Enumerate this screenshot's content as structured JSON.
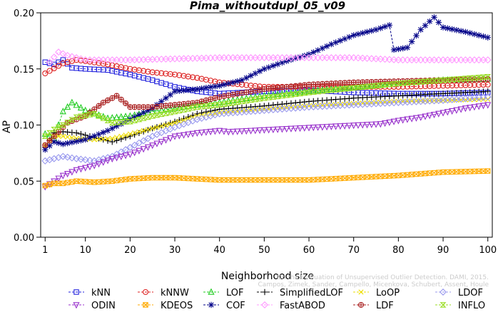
{
  "chart_data": {
    "type": "line",
    "title": "Pima_withoutdupl_05_v09",
    "xlabel": "Neighborhood size",
    "ylabel": "AP",
    "xlim": [
      0,
      101
    ],
    "ylim": [
      0,
      0.2
    ],
    "x_ticks": [
      1,
      10,
      20,
      30,
      40,
      50,
      60,
      70,
      80,
      90,
      100
    ],
    "y_ticks": [
      0.0,
      0.05,
      0.1,
      0.15,
      0.2
    ],
    "y_tick_labels": [
      "0.00",
      "0.05",
      "0.10",
      "0.15",
      "0.20"
    ],
    "grid": false,
    "legend_position": "bottom",
    "watermark": "Campos, Zimek, Sander, Campello, Micenkova, Schubert, Assent, Houle",
    "watermark_title": "On the Evaluation of Unsupervised Outlier Detection. DAMI, 2015.",
    "series": [
      {
        "name": "kNN",
        "color": "#2222dd",
        "marker": "square",
        "points": [
          [
            1,
            0.156
          ],
          [
            3,
            0.154
          ],
          [
            5,
            0.158
          ],
          [
            7,
            0.151
          ],
          [
            10,
            0.15
          ],
          [
            15,
            0.149
          ],
          [
            20,
            0.145
          ],
          [
            25,
            0.14
          ],
          [
            30,
            0.134
          ],
          [
            35,
            0.13
          ],
          [
            40,
            0.128
          ],
          [
            50,
            0.13
          ],
          [
            60,
            0.131
          ],
          [
            70,
            0.129
          ],
          [
            80,
            0.128
          ],
          [
            90,
            0.128
          ],
          [
            100,
            0.129
          ]
        ]
      },
      {
        "name": "kNNW",
        "color": "#dd2222",
        "marker": "circle",
        "points": [
          [
            1,
            0.146
          ],
          [
            5,
            0.155
          ],
          [
            8,
            0.158
          ],
          [
            10,
            0.157
          ],
          [
            15,
            0.154
          ],
          [
            20,
            0.15
          ],
          [
            25,
            0.147
          ],
          [
            30,
            0.145
          ],
          [
            35,
            0.142
          ],
          [
            40,
            0.138
          ],
          [
            50,
            0.134
          ],
          [
            60,
            0.134
          ],
          [
            70,
            0.134
          ],
          [
            80,
            0.134
          ],
          [
            90,
            0.135
          ],
          [
            100,
            0.136
          ]
        ]
      },
      {
        "name": "LOF",
        "color": "#22cc22",
        "marker": "triangle",
        "points": [
          [
            1,
            0.092
          ],
          [
            3,
            0.088
          ],
          [
            5,
            0.112
          ],
          [
            7,
            0.12
          ],
          [
            10,
            0.113
          ],
          [
            15,
            0.106
          ],
          [
            20,
            0.108
          ],
          [
            25,
            0.112
          ],
          [
            30,
            0.115
          ],
          [
            35,
            0.118
          ],
          [
            40,
            0.12
          ],
          [
            50,
            0.126
          ],
          [
            60,
            0.13
          ],
          [
            70,
            0.134
          ],
          [
            80,
            0.137
          ],
          [
            90,
            0.14
          ],
          [
            100,
            0.141
          ]
        ]
      },
      {
        "name": "SimplifiedLOF",
        "color": "#000000",
        "marker": "plus",
        "points": [
          [
            1,
            0.08
          ],
          [
            3,
            0.093
          ],
          [
            5,
            0.094
          ],
          [
            8,
            0.093
          ],
          [
            12,
            0.089
          ],
          [
            16,
            0.085
          ],
          [
            20,
            0.09
          ],
          [
            25,
            0.097
          ],
          [
            30,
            0.103
          ],
          [
            35,
            0.11
          ],
          [
            40,
            0.114
          ],
          [
            50,
            0.117
          ],
          [
            60,
            0.121
          ],
          [
            70,
            0.124
          ],
          [
            80,
            0.126
          ],
          [
            90,
            0.128
          ],
          [
            100,
            0.13
          ]
        ]
      },
      {
        "name": "LoOP",
        "color": "#eedd00",
        "marker": "x",
        "points": [
          [
            1,
            0.082
          ],
          [
            3,
            0.09
          ],
          [
            5,
            0.09
          ],
          [
            8,
            0.088
          ],
          [
            12,
            0.087
          ],
          [
            16,
            0.088
          ],
          [
            20,
            0.092
          ],
          [
            25,
            0.097
          ],
          [
            30,
            0.102
          ],
          [
            35,
            0.108
          ],
          [
            40,
            0.111
          ],
          [
            50,
            0.114
          ],
          [
            60,
            0.117
          ],
          [
            70,
            0.119
          ],
          [
            80,
            0.121
          ],
          [
            90,
            0.122
          ],
          [
            100,
            0.123
          ]
        ]
      },
      {
        "name": "LDOF",
        "color": "#9999ee",
        "marker": "diamond",
        "points": [
          [
            1,
            0.068
          ],
          [
            3,
            0.07
          ],
          [
            5,
            0.072
          ],
          [
            8,
            0.07
          ],
          [
            12,
            0.068
          ],
          [
            16,
            0.072
          ],
          [
            20,
            0.08
          ],
          [
            25,
            0.09
          ],
          [
            30,
            0.098
          ],
          [
            35,
            0.105
          ],
          [
            40,
            0.11
          ],
          [
            50,
            0.113
          ],
          [
            60,
            0.116
          ],
          [
            70,
            0.118
          ],
          [
            80,
            0.12
          ],
          [
            90,
            0.122
          ],
          [
            100,
            0.125
          ]
        ]
      },
      {
        "name": "ODIN",
        "color": "#9933cc",
        "marker": "triangle-down",
        "points": [
          [
            1,
            0.045
          ],
          [
            3,
            0.05
          ],
          [
            5,
            0.055
          ],
          [
            8,
            0.06
          ],
          [
            12,
            0.064
          ],
          [
            16,
            0.07
          ],
          [
            20,
            0.074
          ],
          [
            25,
            0.082
          ],
          [
            30,
            0.09
          ],
          [
            35,
            0.093
          ],
          [
            40,
            0.095
          ],
          [
            42,
            0.094
          ],
          [
            76,
            0.101
          ],
          [
            80,
            0.104
          ],
          [
            85,
            0.107
          ],
          [
            90,
            0.111
          ],
          [
            95,
            0.115
          ],
          [
            100,
            0.118
          ]
        ]
      },
      {
        "name": "KDEOS",
        "color": "#ffaa00",
        "marker": "square-x",
        "points": [
          [
            1,
            0.046
          ],
          [
            3,
            0.048
          ],
          [
            5,
            0.048
          ],
          [
            8,
            0.05
          ],
          [
            12,
            0.049
          ],
          [
            16,
            0.05
          ],
          [
            20,
            0.052
          ],
          [
            25,
            0.053
          ],
          [
            30,
            0.053
          ],
          [
            40,
            0.051
          ],
          [
            50,
            0.051
          ],
          [
            60,
            0.051
          ],
          [
            70,
            0.053
          ],
          [
            80,
            0.055
          ],
          [
            90,
            0.058
          ],
          [
            100,
            0.059
          ]
        ]
      },
      {
        "name": "COF",
        "color": "#000088",
        "marker": "asterisk",
        "points": [
          [
            1,
            0.078
          ],
          [
            3,
            0.085
          ],
          [
            5,
            0.083
          ],
          [
            10,
            0.087
          ],
          [
            15,
            0.095
          ],
          [
            20,
            0.105
          ],
          [
            25,
            0.115
          ],
          [
            30,
            0.13
          ],
          [
            35,
            0.132
          ],
          [
            40,
            0.135
          ],
          [
            45,
            0.14
          ],
          [
            50,
            0.15
          ],
          [
            55,
            0.157
          ],
          [
            60,
            0.163
          ],
          [
            65,
            0.172
          ],
          [
            70,
            0.18
          ],
          [
            75,
            0.185
          ],
          [
            78,
            0.189
          ],
          [
            79,
            0.167
          ],
          [
            82,
            0.169
          ],
          [
            85,
            0.185
          ],
          [
            88,
            0.196
          ],
          [
            90,
            0.187
          ],
          [
            95,
            0.183
          ],
          [
            100,
            0.178
          ]
        ]
      },
      {
        "name": "FastABOD",
        "color": "#ff99ff",
        "marker": "diamond",
        "points": [
          [
            2,
            0.156
          ],
          [
            4,
            0.165
          ],
          [
            6,
            0.162
          ],
          [
            10,
            0.158
          ],
          [
            20,
            0.158
          ],
          [
            30,
            0.159
          ],
          [
            40,
            0.16
          ],
          [
            50,
            0.16
          ],
          [
            60,
            0.16
          ],
          [
            70,
            0.16
          ],
          [
            80,
            0.158
          ],
          [
            90,
            0.158
          ],
          [
            100,
            0.158
          ]
        ]
      },
      {
        "name": "LDF",
        "color": "#aa2222",
        "marker": "circle-plus",
        "points": [
          [
            1,
            0.082
          ],
          [
            3,
            0.09
          ],
          [
            6,
            0.102
          ],
          [
            10,
            0.108
          ],
          [
            14,
            0.12
          ],
          [
            17,
            0.126
          ],
          [
            20,
            0.116
          ],
          [
            25,
            0.116
          ],
          [
            30,
            0.118
          ],
          [
            35,
            0.12
          ],
          [
            40,
            0.125
          ],
          [
            50,
            0.132
          ],
          [
            60,
            0.136
          ],
          [
            70,
            0.138
          ],
          [
            80,
            0.139
          ],
          [
            90,
            0.14
          ],
          [
            100,
            0.141
          ]
        ]
      },
      {
        "name": "INFLO",
        "color": "#99dd22",
        "marker": "hourglass",
        "points": [
          [
            1,
            0.09
          ],
          [
            3,
            0.096
          ],
          [
            5,
            0.1
          ],
          [
            8,
            0.107
          ],
          [
            12,
            0.11
          ],
          [
            16,
            0.102
          ],
          [
            20,
            0.103
          ],
          [
            25,
            0.108
          ],
          [
            30,
            0.112
          ],
          [
            35,
            0.116
          ],
          [
            40,
            0.118
          ],
          [
            50,
            0.124
          ],
          [
            60,
            0.129
          ],
          [
            70,
            0.133
          ],
          [
            80,
            0.137
          ],
          [
            90,
            0.14
          ],
          [
            100,
            0.143
          ]
        ]
      }
    ]
  }
}
